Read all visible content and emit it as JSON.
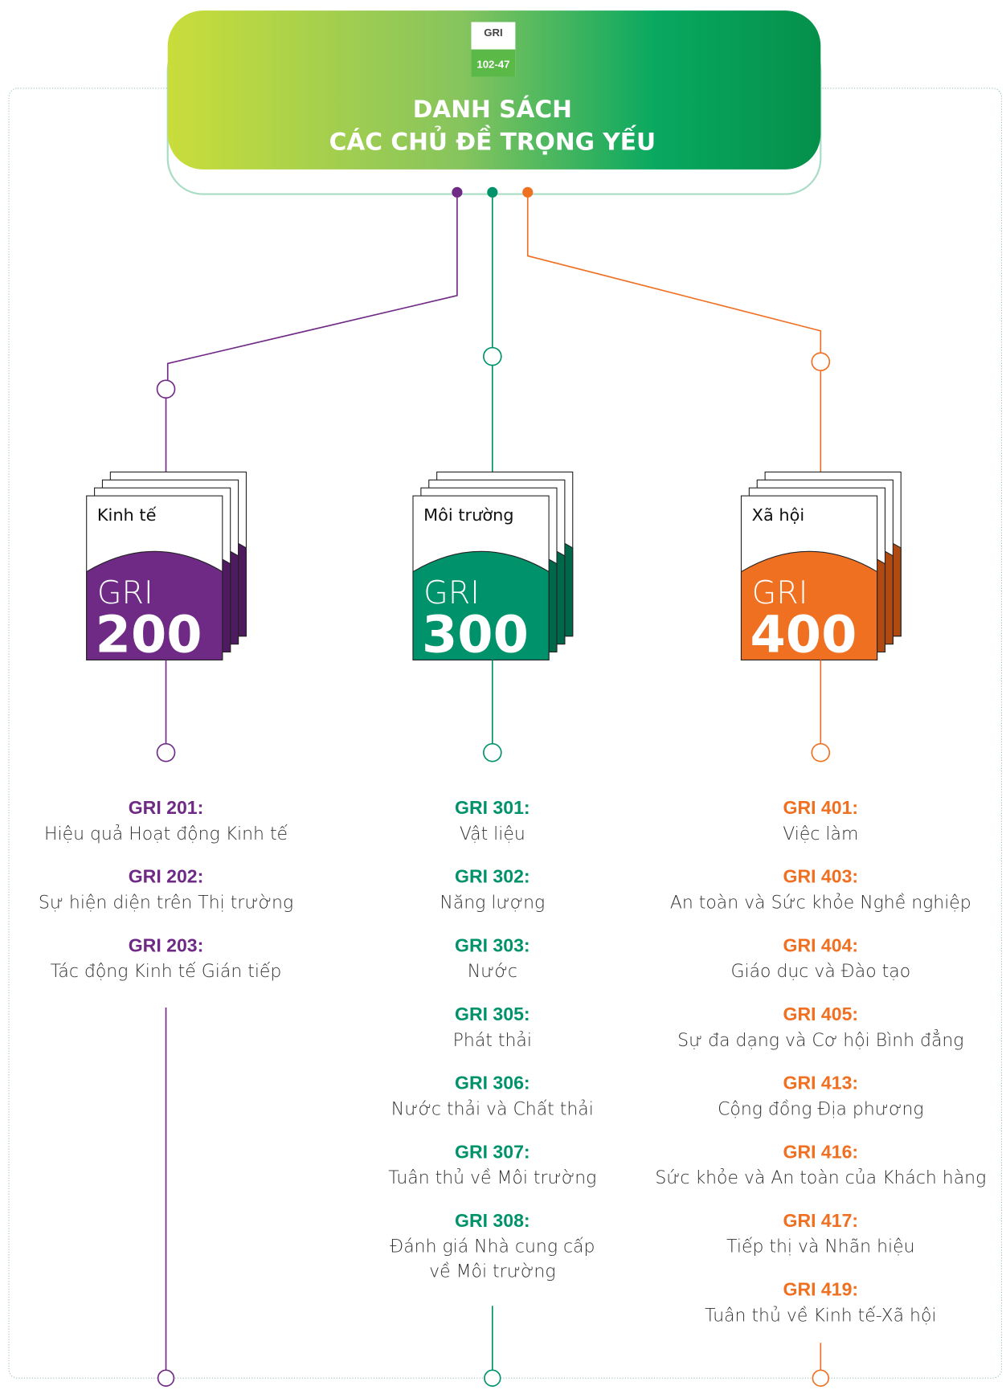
{
  "header": {
    "badge_top": "GRI",
    "badge_bottom": "102-47",
    "title_lines": [
      "DANH SÁCH",
      "CÁC CHỦ ĐỀ TRỌNG YẾU"
    ]
  },
  "columns": [
    {
      "label": "Kinh tế",
      "prefix": "GRI",
      "number": "200",
      "items": [
        {
          "code": "GRI 201:",
          "name": [
            "Hiệu quả Hoạt động Kinh tế"
          ]
        },
        {
          "code": "GRI 202:",
          "name": [
            "Sự hiện diện trên Thị trường"
          ]
        },
        {
          "code": "GRI 203:",
          "name": [
            "Tác động Kinh tế Gián tiếp"
          ]
        }
      ]
    },
    {
      "label": "Môi trường",
      "prefix": "GRI",
      "number": "300",
      "items": [
        {
          "code": "GRI 301:",
          "name": [
            "Vật liệu"
          ]
        },
        {
          "code": "GRI 302:",
          "name": [
            "Năng lượng"
          ]
        },
        {
          "code": "GRI 303:",
          "name": [
            "Nước"
          ]
        },
        {
          "code": "GRI 305:",
          "name": [
            "Phát thải"
          ]
        },
        {
          "code": "GRI 306:",
          "name": [
            "Nước thải và Chất thải"
          ]
        },
        {
          "code": "GRI 307:",
          "name": [
            "Tuân thủ về Môi trường"
          ]
        },
        {
          "code": "GRI 308:",
          "name": [
            "Đánh giá Nhà cung cấp",
            "về Môi trường"
          ]
        }
      ]
    },
    {
      "label": "Xã hội",
      "prefix": "GRI",
      "number": "400",
      "items": [
        {
          "code": "GRI 401:",
          "name": [
            "Việc làm"
          ]
        },
        {
          "code": "GRI 403:",
          "name": [
            "An toàn và Sức khỏe Nghề nghiệp"
          ]
        },
        {
          "code": "GRI 404:",
          "name": [
            "Giáo dục và Đào tạo"
          ]
        },
        {
          "code": "GRI 405:",
          "name": [
            "Sự đa dạng và Cơ hội Bình đẳng"
          ]
        },
        {
          "code": "GRI 413:",
          "name": [
            "Cộng đồng Địa phương"
          ]
        },
        {
          "code": "GRI 416:",
          "name": [
            "Sức khỏe và An toàn của Khách hàng"
          ]
        },
        {
          "code": "GRI 417:",
          "name": [
            "Tiếp thị và Nhãn hiệu"
          ]
        },
        {
          "code": "GRI 419:",
          "name": [
            "Tuân thủ về Kinh tế-Xã hội"
          ]
        }
      ]
    }
  ]
}
